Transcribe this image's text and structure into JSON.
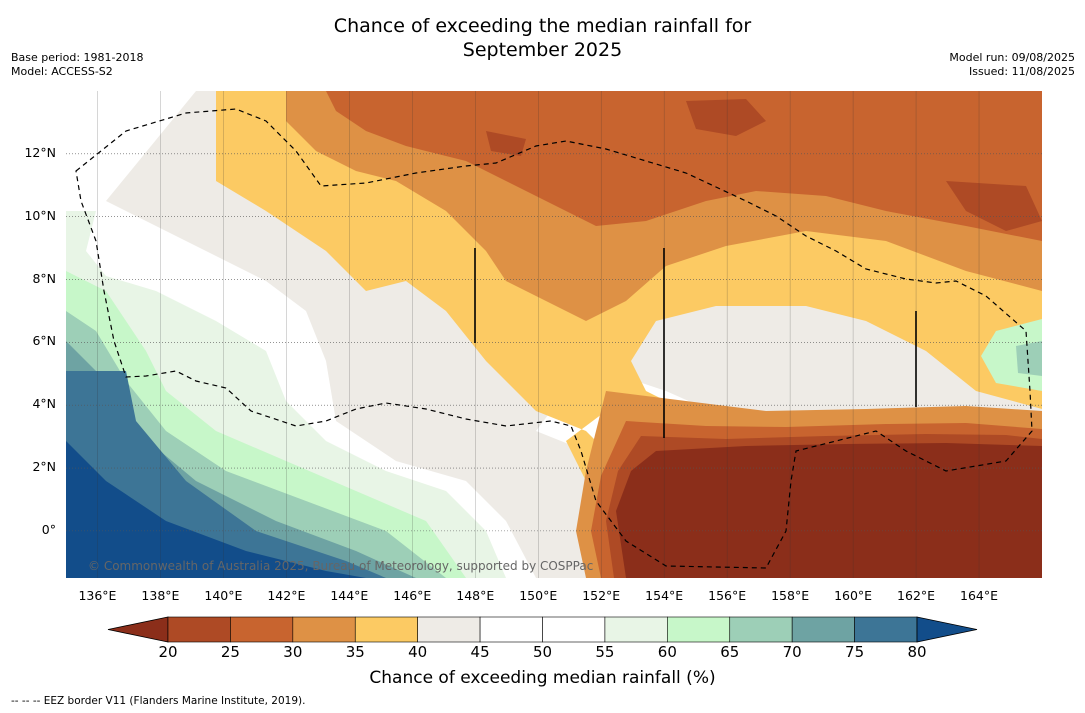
{
  "title": {
    "line1": "Chance of exceeding the median rainfall for",
    "line2": "September 2025"
  },
  "meta_left": {
    "base_period": "Base period: 1981-2018",
    "model": "Model: ACCESS-S2"
  },
  "meta_right": {
    "model_run": "Model run: 09/08/2025",
    "issued": "Issued: 11/08/2025"
  },
  "map": {
    "lon_labels": [
      "136°E",
      "138°E",
      "140°E",
      "142°E",
      "144°E",
      "146°E",
      "148°E",
      "150°E",
      "152°E",
      "154°E",
      "156°E",
      "158°E",
      "160°E",
      "162°E",
      "164°E"
    ],
    "lon_values": [
      136,
      138,
      140,
      142,
      144,
      146,
      148,
      150,
      152,
      154,
      156,
      158,
      160,
      162,
      164
    ],
    "lat_labels": [
      "12°N",
      "10°N",
      "8°N",
      "6°N",
      "4°N",
      "2°N",
      "0°"
    ],
    "lat_values": [
      12,
      10,
      8,
      6,
      4,
      2,
      0
    ],
    "lon_range": [
      135.0,
      166.0
    ],
    "lat_range": [
      -1.5,
      14.0
    ],
    "copyright": "© Commonwealth of Australia 2025, Bureau of Meteorology, supported by COSPPac",
    "grid": "dotted"
  },
  "colorbar": {
    "ticks": [
      "20",
      "25",
      "30",
      "35",
      "40",
      "45",
      "50",
      "55",
      "60",
      "65",
      "70",
      "75",
      "80"
    ],
    "colors": [
      "#8b2e1a",
      "#ae4a25",
      "#c8642f",
      "#de9145",
      "#fcca63",
      "#eeebe6",
      "#ffffff",
      "#ffffff",
      "#e8f5e6",
      "#c7f7c9",
      "#9dcfb7",
      "#6ea3a3",
      "#3d7596",
      "#124d8a"
    ],
    "title": "Chance of exceeding median rainfall (%)"
  },
  "footnote": "--  --  -- EEZ border V11 (Flanders Marine Institute, 2019)."
}
